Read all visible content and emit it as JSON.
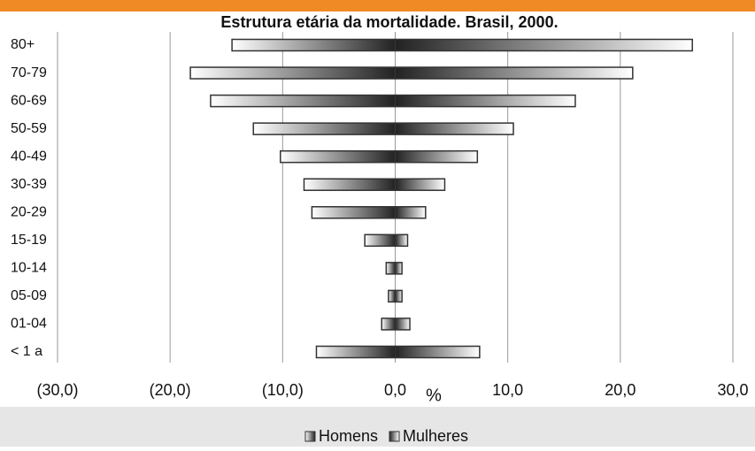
{
  "chart_data": {
    "type": "pyramid",
    "title": "Estrutura etária da mortalidade. Brasil, 2000.",
    "x_label": "%",
    "categories": [
      "80+",
      "70-79",
      "60-69",
      "50-59",
      "40-49",
      "30-39",
      "20-29",
      "15-19",
      "10-14",
      "05-09",
      "01-04",
      "< 1 a"
    ],
    "series": [
      {
        "name": "Homens",
        "color": "#333333",
        "values": [
          -14.5,
          -18.2,
          -16.4,
          -12.6,
          -10.2,
          -8.1,
          -7.4,
          -2.7,
          -0.8,
          -0.6,
          -1.2,
          -7.0
        ]
      },
      {
        "name": "Mulheres",
        "color": "#333333",
        "values": [
          26.4,
          21.1,
          16.0,
          10.5,
          7.3,
          4.4,
          2.7,
          1.1,
          0.6,
          0.6,
          1.3,
          7.5
        ]
      }
    ],
    "xlim": [
      -30,
      30
    ],
    "xticks": [
      {
        "value": -30,
        "label": "(30,0)"
      },
      {
        "value": -20,
        "label": "(20,0)"
      },
      {
        "value": -10,
        "label": "(10,0)"
      },
      {
        "value": 0,
        "label": "0,0"
      },
      {
        "value": 10,
        "label": "10,0"
      },
      {
        "value": 20,
        "label": "20,0"
      },
      {
        "value": 30,
        "label": "30,0"
      }
    ],
    "grid": true,
    "legend": "bottom"
  }
}
